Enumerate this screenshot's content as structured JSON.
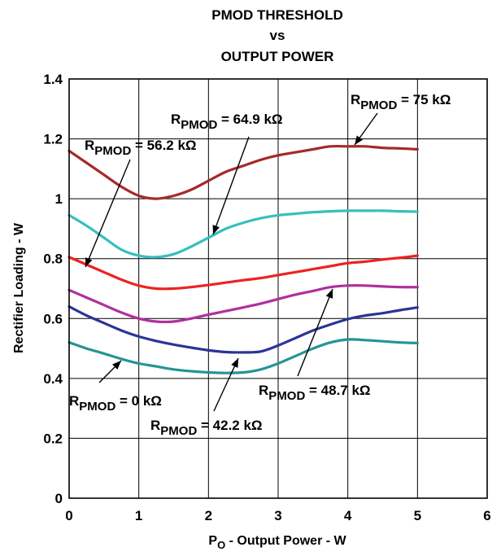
{
  "chart_data": {
    "type": "line",
    "title": [
      "PMOD THRESHOLD",
      "vs",
      "OUTPUT POWER"
    ],
    "xlabel": {
      "main": "P",
      "sub": "O",
      "rest": " - Output Power - W"
    },
    "ylabel": "Rectifier Loading - W",
    "xlim": [
      0,
      6
    ],
    "ylim": [
      0,
      1.4
    ],
    "x_ticks": [
      0,
      1,
      2,
      3,
      4,
      5,
      6
    ],
    "x_tick_labels": [
      "0",
      "1",
      "2",
      "3",
      "4",
      "5",
      "6"
    ],
    "y_ticks": [
      0,
      0.2,
      0.4,
      0.6,
      0.8,
      1,
      1.2,
      1.4
    ],
    "y_tick_labels": [
      "0",
      "0.2",
      "0.4",
      "0.6",
      "0.8",
      "1",
      "1.2",
      "1.4"
    ],
    "grid": true,
    "series": [
      {
        "label": {
          "r": "R",
          "sub": "PMOD",
          "val": " = 75 kΩ"
        },
        "color": "#a52a2a",
        "x": [
          0,
          0.25,
          0.5,
          0.75,
          1,
          1.25,
          1.5,
          1.75,
          2,
          2.25,
          2.5,
          2.75,
          3,
          3.25,
          3.5,
          3.75,
          4,
          4.25,
          4.5,
          4.75,
          5
        ],
        "y": [
          1.16,
          1.12,
          1.08,
          1.04,
          1.01,
          1.0,
          1.01,
          1.03,
          1.06,
          1.09,
          1.11,
          1.13,
          1.145,
          1.155,
          1.165,
          1.175,
          1.175,
          1.175,
          1.17,
          1.168,
          1.165
        ]
      },
      {
        "label": {
          "r": "R",
          "sub": "PMOD",
          "val": " = 64.9 kΩ"
        },
        "color": "#36bfbf",
        "x": [
          0,
          0.25,
          0.5,
          0.75,
          1,
          1.25,
          1.5,
          1.75,
          2,
          2.25,
          2.5,
          2.75,
          3,
          3.25,
          3.5,
          3.75,
          4,
          4.25,
          4.5,
          4.75,
          5
        ],
        "y": [
          0.945,
          0.91,
          0.87,
          0.83,
          0.81,
          0.805,
          0.815,
          0.84,
          0.87,
          0.9,
          0.92,
          0.935,
          0.945,
          0.95,
          0.955,
          0.958,
          0.96,
          0.96,
          0.96,
          0.958,
          0.957
        ]
      },
      {
        "label": {
          "r": "R",
          "sub": "PMOD",
          "val": " = 56.2 kΩ"
        },
        "color": "#ee2222",
        "x": [
          0,
          0.25,
          0.5,
          0.75,
          1,
          1.25,
          1.5,
          1.75,
          2,
          2.25,
          2.5,
          2.75,
          3,
          3.25,
          3.5,
          3.75,
          4,
          4.25,
          4.5,
          4.75,
          5
        ],
        "y": [
          0.805,
          0.78,
          0.755,
          0.73,
          0.71,
          0.7,
          0.7,
          0.705,
          0.712,
          0.72,
          0.728,
          0.735,
          0.745,
          0.755,
          0.765,
          0.775,
          0.785,
          0.79,
          0.797,
          0.803,
          0.81
        ]
      },
      {
        "label": {
          "r": "R",
          "sub": "PMOD",
          "val": " = 48.7 kΩ"
        },
        "color": "#b0309c",
        "x": [
          0,
          0.25,
          0.5,
          0.75,
          1,
          1.25,
          1.5,
          1.75,
          2,
          2.25,
          2.5,
          2.75,
          3,
          3.25,
          3.5,
          3.75,
          4,
          4.25,
          4.5,
          4.75,
          5
        ],
        "y": [
          0.695,
          0.67,
          0.645,
          0.62,
          0.6,
          0.59,
          0.59,
          0.6,
          0.613,
          0.625,
          0.637,
          0.65,
          0.665,
          0.68,
          0.692,
          0.705,
          0.71,
          0.71,
          0.707,
          0.705,
          0.705
        ]
      },
      {
        "label": {
          "r": "R",
          "sub": "PMOD",
          "val": " = 42.2 kΩ"
        },
        "color": "#2a3596",
        "x": [
          0,
          0.25,
          0.5,
          0.75,
          1,
          1.25,
          1.5,
          1.75,
          2,
          2.25,
          2.5,
          2.75,
          3,
          3.25,
          3.5,
          3.75,
          4,
          4.25,
          4.5,
          4.75,
          5
        ],
        "y": [
          0.64,
          0.61,
          0.585,
          0.56,
          0.54,
          0.525,
          0.513,
          0.503,
          0.494,
          0.488,
          0.487,
          0.49,
          0.51,
          0.535,
          0.56,
          0.58,
          0.598,
          0.61,
          0.618,
          0.628,
          0.637
        ]
      },
      {
        "label": {
          "r": "R",
          "sub": "PMOD",
          "val": " = 0 kΩ"
        },
        "color": "#269494",
        "x": [
          0,
          0.25,
          0.5,
          0.75,
          1,
          1.25,
          1.5,
          1.75,
          2,
          2.25,
          2.5,
          2.75,
          3,
          3.25,
          3.5,
          3.75,
          4,
          4.25,
          4.5,
          4.75,
          5
        ],
        "y": [
          0.52,
          0.5,
          0.483,
          0.465,
          0.45,
          0.44,
          0.43,
          0.424,
          0.42,
          0.418,
          0.42,
          0.43,
          0.45,
          0.475,
          0.5,
          0.52,
          0.53,
          0.528,
          0.524,
          0.52,
          0.518
        ]
      }
    ]
  }
}
